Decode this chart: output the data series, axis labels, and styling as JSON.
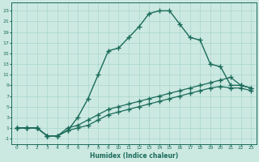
{
  "xlabel": "Humidex (Indice chaleur)",
  "bg_color": "#cce9e1",
  "line_color": "#1a6b5a",
  "grid_color": "#a8d5cc",
  "xlim": [
    -0.5,
    23.5
  ],
  "ylim": [
    -2.0,
    24.5
  ],
  "xticks": [
    0,
    1,
    2,
    3,
    4,
    5,
    6,
    7,
    8,
    9,
    10,
    11,
    12,
    13,
    14,
    15,
    16,
    17,
    18,
    19,
    20,
    21,
    22,
    23
  ],
  "yticks": [
    -1,
    1,
    3,
    5,
    7,
    9,
    11,
    13,
    15,
    17,
    19,
    21,
    23
  ],
  "line1_x": [
    0,
    1,
    2,
    3,
    4,
    5,
    6,
    7,
    8,
    9,
    10,
    11,
    12,
    13,
    14,
    15,
    16,
    17,
    18,
    19,
    20,
    21,
    22,
    23
  ],
  "line1_y": [
    1.0,
    1.0,
    1.0,
    -0.5,
    -0.5,
    0.5,
    3.0,
    6.5,
    11.0,
    15.5,
    16.0,
    18.0,
    20.0,
    22.5,
    23.0,
    23.0,
    20.5,
    18.0,
    17.5,
    13.0,
    12.5,
    9.0,
    9.0,
    8.5
  ],
  "line2_x": [
    0,
    1,
    2,
    3,
    4,
    5,
    6,
    7,
    8,
    9,
    10,
    11,
    12,
    13,
    14,
    15,
    16,
    17,
    18,
    19,
    20,
    21,
    22,
    23
  ],
  "line2_y": [
    1.0,
    1.0,
    1.0,
    -0.5,
    -0.5,
    1.0,
    1.5,
    2.5,
    3.5,
    4.5,
    5.0,
    5.5,
    6.0,
    6.5,
    7.0,
    7.5,
    8.0,
    8.5,
    9.0,
    9.5,
    10.0,
    10.5,
    9.0,
    8.5
  ],
  "line3_x": [
    0,
    1,
    2,
    3,
    4,
    5,
    6,
    7,
    8,
    9,
    10,
    11,
    12,
    13,
    14,
    15,
    16,
    17,
    18,
    19,
    20,
    21,
    22,
    23
  ],
  "line3_y": [
    1.0,
    1.0,
    1.0,
    -0.5,
    -0.5,
    0.5,
    1.0,
    1.5,
    2.5,
    3.5,
    4.0,
    4.5,
    5.0,
    5.5,
    6.0,
    6.5,
    7.0,
    7.5,
    8.0,
    8.5,
    8.8,
    8.5,
    8.5,
    8.0
  ],
  "markersize": 2.5,
  "linewidth_main": 1.0,
  "linewidth_sub": 0.9
}
